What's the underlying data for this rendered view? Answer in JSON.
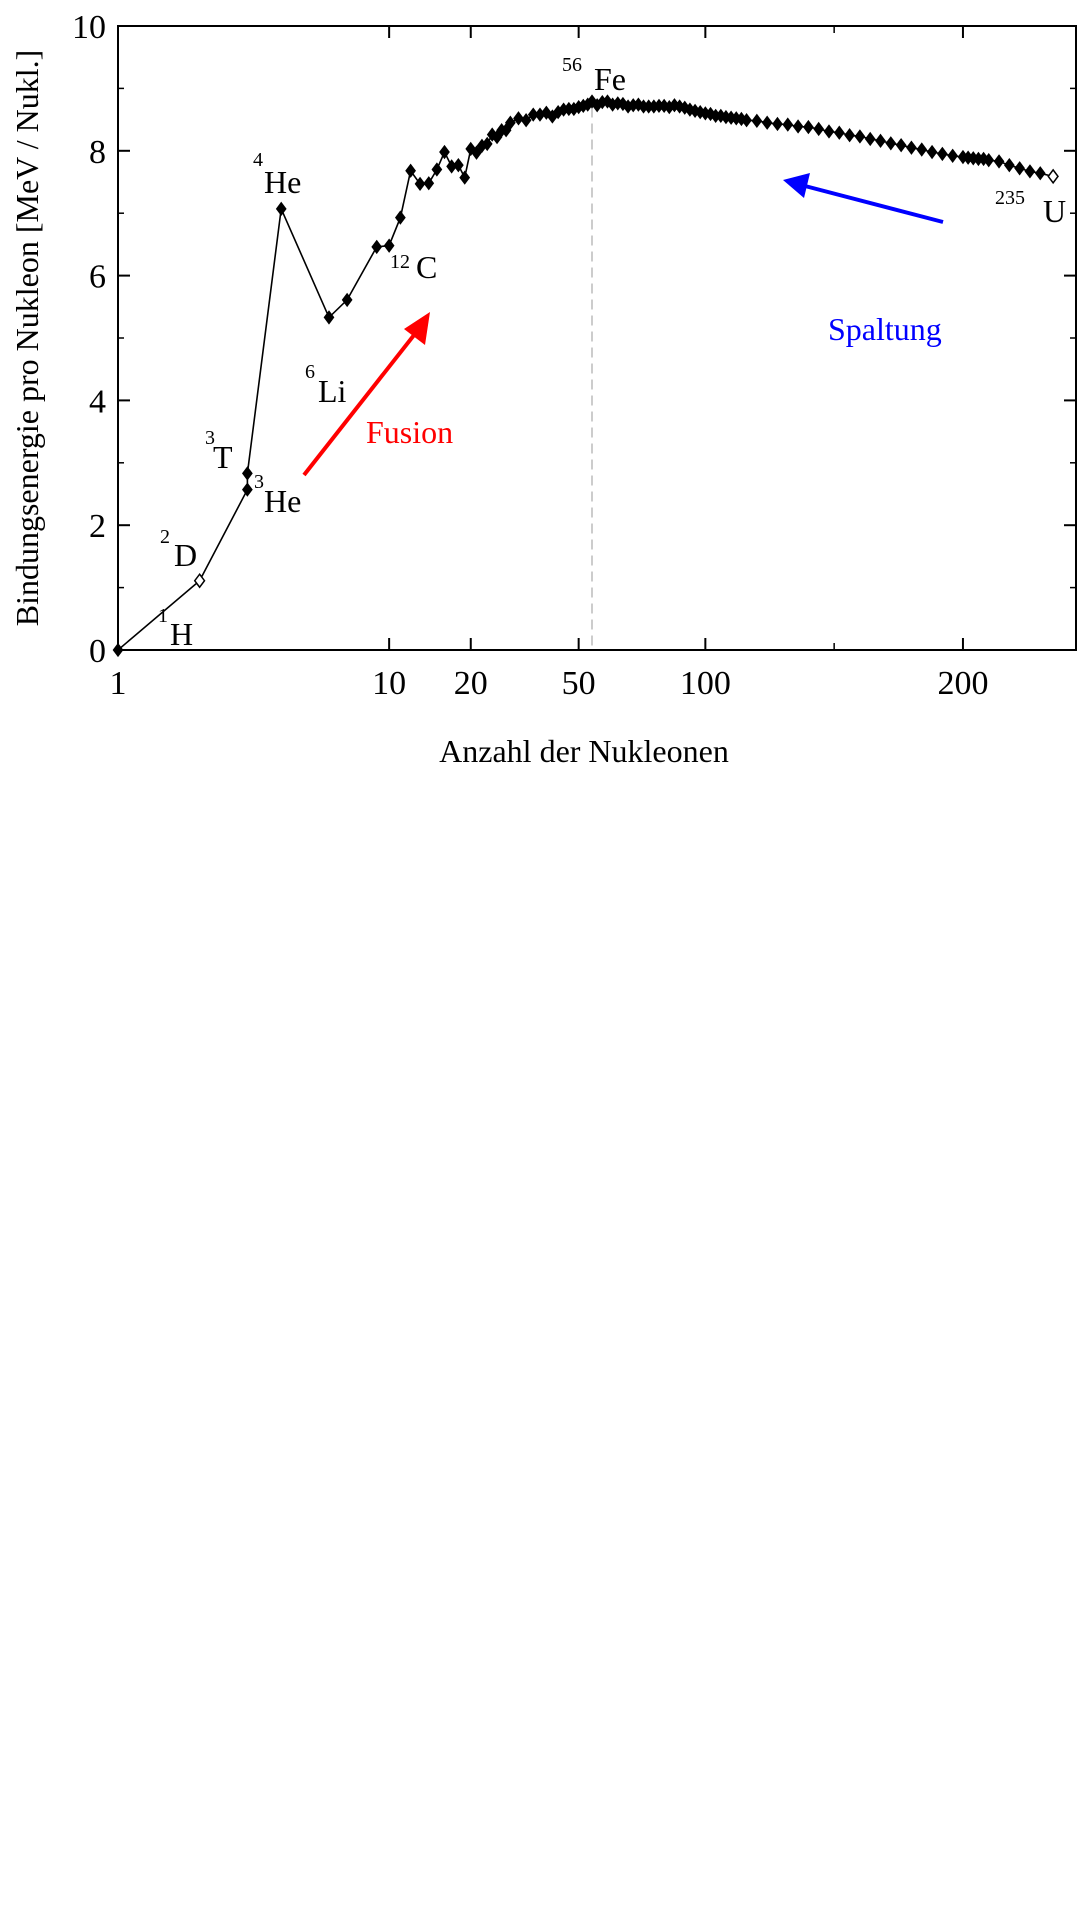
{
  "chart_data": {
    "type": "line",
    "xlabel": "Anzahl der Nukleonen",
    "ylabel": "Bindungsenergie pro Nukleon [MeV / Nukl.]",
    "xscale": "piecewise: log from 1 to 56, linear from 56 to 240",
    "ylim": [
      0,
      10
    ],
    "xlim": [
      1,
      240
    ],
    "x_ticks": [
      "1",
      "10",
      "20",
      "50",
      "100",
      "200"
    ],
    "y_ticks": [
      "0",
      "2",
      "4",
      "6",
      "8",
      "10"
    ],
    "grid": false,
    "legend": "none",
    "colors": {
      "line": "#000000",
      "fusion": "#ff0000",
      "spaltung": "#0000ff",
      "refline": "#bbbbbb"
    },
    "series": [
      {
        "x": [
          1,
          2,
          3,
          3,
          4,
          6,
          7,
          9,
          10,
          11,
          12,
          13,
          14,
          15,
          16,
          17,
          18,
          19,
          20,
          21,
          22,
          23,
          24,
          25,
          26,
          27,
          28,
          30,
          32,
          34,
          36,
          38,
          40,
          42,
          44,
          46,
          48,
          50,
          52,
          54,
          56,
          58,
          60,
          62,
          64,
          66,
          68,
          70,
          72,
          74,
          76,
          78,
          80,
          82,
          84,
          86,
          88,
          90,
          92,
          94,
          96,
          98,
          100,
          102,
          104,
          106,
          108,
          110,
          112,
          114,
          116,
          120,
          124,
          128,
          132,
          136,
          140,
          144,
          148,
          152,
          156,
          160,
          164,
          168,
          172,
          176,
          180,
          184,
          188,
          192,
          196,
          200,
          202,
          204,
          206,
          208,
          210,
          214,
          218,
          222,
          226,
          230,
          235
        ],
        "y": [
          0,
          1.11,
          2.57,
          2.83,
          7.07,
          5.33,
          5.61,
          6.46,
          6.48,
          6.93,
          7.68,
          7.47,
          7.48,
          7.7,
          7.98,
          7.75,
          7.77,
          7.57,
          8.03,
          7.97,
          8.08,
          8.11,
          8.26,
          8.22,
          8.33,
          8.33,
          8.45,
          8.52,
          8.49,
          8.58,
          8.58,
          8.61,
          8.55,
          8.62,
          8.66,
          8.67,
          8.67,
          8.7,
          8.72,
          8.74,
          8.79,
          8.73,
          8.78,
          8.79,
          8.74,
          8.76,
          8.75,
          8.71,
          8.73,
          8.74,
          8.71,
          8.71,
          8.71,
          8.72,
          8.72,
          8.7,
          8.73,
          8.71,
          8.69,
          8.66,
          8.64,
          8.62,
          8.6,
          8.59,
          8.56,
          8.56,
          8.54,
          8.53,
          8.52,
          8.51,
          8.49,
          8.48,
          8.45,
          8.43,
          8.42,
          8.39,
          8.38,
          8.35,
          8.31,
          8.29,
          8.25,
          8.23,
          8.19,
          8.16,
          8.12,
          8.09,
          8.05,
          8.02,
          7.98,
          7.95,
          7.92,
          7.9,
          7.89,
          7.88,
          7.87,
          7.87,
          7.85,
          7.83,
          7.77,
          7.72,
          7.67,
          7.64,
          7.59
        ],
        "open_markers_at_x": [
          2,
          235
        ]
      }
    ],
    "annotations": {
      "h1": {
        "sup": "1",
        "label": "H"
      },
      "d2": {
        "sup": "2",
        "label": "D"
      },
      "t3": {
        "sup": "3",
        "label": "T"
      },
      "he3": {
        "sup": "3",
        "label": "He"
      },
      "he4": {
        "sup": "4",
        "label": "He"
      },
      "li6": {
        "sup": "6",
        "label": "Li"
      },
      "c12": {
        "sup": "12",
        "label": "C"
      },
      "fe56": {
        "sup": "56",
        "label": "Fe"
      },
      "u235": {
        "sup": "235",
        "label": "U"
      },
      "fusion": "Fusion",
      "spaltung": "Spaltung"
    }
  }
}
